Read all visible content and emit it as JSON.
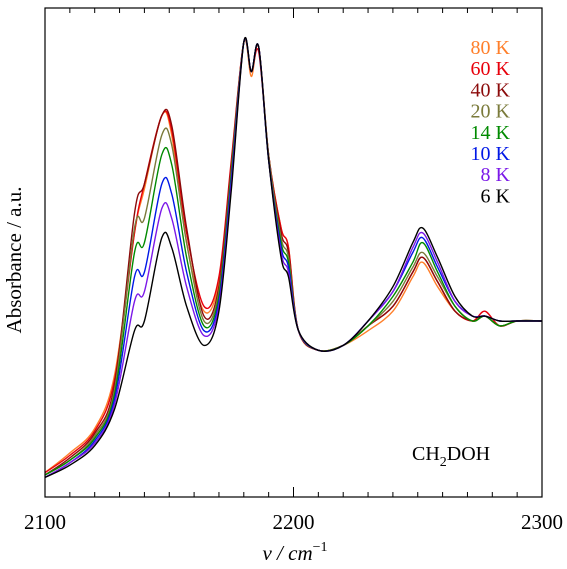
{
  "chart_data": {
    "type": "line",
    "xlabel": "ν / cm",
    "xlabel_superscript": "−1",
    "ylabel": "Absorbance / a.u.",
    "xlim": [
      2100,
      2300
    ],
    "ylim": [
      0,
      1
    ],
    "x_ticks": [
      2100,
      2200,
      2300
    ],
    "x_minor_step": 10,
    "grid": false,
    "legend_position": "top-right",
    "annotation": {
      "main": "CH",
      "sub": "2",
      "rest": "DOH"
    },
    "series": [
      {
        "name": "80 K",
        "color": "#ff7f2a",
        "values": [
          [
            2100,
            0.05
          ],
          [
            2110,
            0.09
          ],
          [
            2120,
            0.14
          ],
          [
            2128,
            0.25
          ],
          [
            2136,
            0.54
          ],
          [
            2140,
            0.63
          ],
          [
            2147,
            0.78
          ],
          [
            2151,
            0.74
          ],
          [
            2157,
            0.52
          ],
          [
            2164,
            0.38
          ],
          [
            2170,
            0.44
          ],
          [
            2175,
            0.68
          ],
          [
            2180,
            0.93
          ],
          [
            2183,
            0.86
          ],
          [
            2186,
            0.92
          ],
          [
            2190,
            0.7
          ],
          [
            2195,
            0.55
          ],
          [
            2198,
            0.51
          ],
          [
            2202,
            0.34
          ],
          [
            2210,
            0.3
          ],
          [
            2220,
            0.31
          ],
          [
            2230,
            0.34
          ],
          [
            2240,
            0.38
          ],
          [
            2248,
            0.45
          ],
          [
            2252,
            0.48
          ],
          [
            2258,
            0.43
          ],
          [
            2265,
            0.38
          ],
          [
            2272,
            0.36
          ],
          [
            2277,
            0.37
          ],
          [
            2283,
            0.35
          ],
          [
            2290,
            0.36
          ],
          [
            2300,
            0.36
          ]
        ]
      },
      {
        "name": "60 K",
        "color": "#e8000b",
        "values": [
          [
            2100,
            0.05
          ],
          [
            2110,
            0.085
          ],
          [
            2120,
            0.135
          ],
          [
            2128,
            0.24
          ],
          [
            2136,
            0.54
          ],
          [
            2140,
            0.64
          ],
          [
            2147,
            0.78
          ],
          [
            2151,
            0.75
          ],
          [
            2157,
            0.54
          ],
          [
            2164,
            0.39
          ],
          [
            2170,
            0.45
          ],
          [
            2175,
            0.69
          ],
          [
            2180,
            0.93
          ],
          [
            2183,
            0.87
          ],
          [
            2186,
            0.91
          ],
          [
            2190,
            0.7
          ],
          [
            2195,
            0.55
          ],
          [
            2198,
            0.51
          ],
          [
            2202,
            0.34
          ],
          [
            2210,
            0.3
          ],
          [
            2220,
            0.31
          ],
          [
            2230,
            0.35
          ],
          [
            2240,
            0.39
          ],
          [
            2248,
            0.46
          ],
          [
            2252,
            0.49
          ],
          [
            2258,
            0.44
          ],
          [
            2265,
            0.38
          ],
          [
            2272,
            0.36
          ],
          [
            2277,
            0.38
          ],
          [
            2283,
            0.35
          ],
          [
            2290,
            0.36
          ],
          [
            2300,
            0.36
          ]
        ]
      },
      {
        "name": "40 K",
        "color": "#8b0a0a",
        "values": [
          [
            2100,
            0.045
          ],
          [
            2110,
            0.08
          ],
          [
            2120,
            0.13
          ],
          [
            2128,
            0.23
          ],
          [
            2136,
            0.58
          ],
          [
            2140,
            0.64
          ],
          [
            2147,
            0.78
          ],
          [
            2151,
            0.76
          ],
          [
            2157,
            0.55
          ],
          [
            2164,
            0.37
          ],
          [
            2170,
            0.43
          ],
          [
            2175,
            0.68
          ],
          [
            2180,
            0.93
          ],
          [
            2183,
            0.87
          ],
          [
            2186,
            0.92
          ],
          [
            2190,
            0.7
          ],
          [
            2195,
            0.54
          ],
          [
            2198,
            0.5
          ],
          [
            2202,
            0.34
          ],
          [
            2210,
            0.3
          ],
          [
            2220,
            0.31
          ],
          [
            2230,
            0.35
          ],
          [
            2240,
            0.39
          ],
          [
            2248,
            0.46
          ],
          [
            2252,
            0.49
          ],
          [
            2258,
            0.44
          ],
          [
            2265,
            0.38
          ],
          [
            2272,
            0.36
          ],
          [
            2277,
            0.37
          ],
          [
            2283,
            0.35
          ],
          [
            2290,
            0.36
          ],
          [
            2300,
            0.36
          ]
        ]
      },
      {
        "name": "20 K",
        "color": "#7a7a3a",
        "values": [
          [
            2100,
            0.045
          ],
          [
            2110,
            0.075
          ],
          [
            2120,
            0.125
          ],
          [
            2128,
            0.22
          ],
          [
            2136,
            0.55
          ],
          [
            2140,
            0.57
          ],
          [
            2147,
            0.74
          ],
          [
            2151,
            0.72
          ],
          [
            2157,
            0.52
          ],
          [
            2164,
            0.36
          ],
          [
            2170,
            0.42
          ],
          [
            2175,
            0.67
          ],
          [
            2180,
            0.93
          ],
          [
            2183,
            0.87
          ],
          [
            2186,
            0.92
          ],
          [
            2190,
            0.7
          ],
          [
            2195,
            0.53
          ],
          [
            2198,
            0.49
          ],
          [
            2202,
            0.34
          ],
          [
            2210,
            0.3
          ],
          [
            2220,
            0.31
          ],
          [
            2230,
            0.35
          ],
          [
            2240,
            0.4
          ],
          [
            2248,
            0.47
          ],
          [
            2252,
            0.5
          ],
          [
            2258,
            0.45
          ],
          [
            2265,
            0.39
          ],
          [
            2272,
            0.36
          ],
          [
            2277,
            0.37
          ],
          [
            2283,
            0.35
          ],
          [
            2290,
            0.36
          ],
          [
            2300,
            0.36
          ]
        ]
      },
      {
        "name": "14 K",
        "color": "#008a00",
        "values": [
          [
            2100,
            0.045
          ],
          [
            2110,
            0.075
          ],
          [
            2120,
            0.12
          ],
          [
            2128,
            0.21
          ],
          [
            2136,
            0.5
          ],
          [
            2140,
            0.52
          ],
          [
            2147,
            0.7
          ],
          [
            2151,
            0.68
          ],
          [
            2157,
            0.49
          ],
          [
            2164,
            0.35
          ],
          [
            2170,
            0.41
          ],
          [
            2175,
            0.66
          ],
          [
            2180,
            0.93
          ],
          [
            2183,
            0.87
          ],
          [
            2186,
            0.92
          ],
          [
            2190,
            0.69
          ],
          [
            2195,
            0.52
          ],
          [
            2198,
            0.48
          ],
          [
            2202,
            0.34
          ],
          [
            2210,
            0.3
          ],
          [
            2220,
            0.31
          ],
          [
            2230,
            0.35
          ],
          [
            2240,
            0.41
          ],
          [
            2248,
            0.48
          ],
          [
            2252,
            0.52
          ],
          [
            2258,
            0.46
          ],
          [
            2265,
            0.39
          ],
          [
            2272,
            0.36
          ],
          [
            2277,
            0.37
          ],
          [
            2283,
            0.35
          ],
          [
            2290,
            0.36
          ],
          [
            2300,
            0.36
          ]
        ]
      },
      {
        "name": "10 K",
        "color": "#0018e6",
        "values": [
          [
            2100,
            0.04
          ],
          [
            2110,
            0.07
          ],
          [
            2120,
            0.115
          ],
          [
            2128,
            0.2
          ],
          [
            2136,
            0.45
          ],
          [
            2140,
            0.46
          ],
          [
            2147,
            0.64
          ],
          [
            2151,
            0.62
          ],
          [
            2157,
            0.46
          ],
          [
            2164,
            0.34
          ],
          [
            2170,
            0.4
          ],
          [
            2175,
            0.65
          ],
          [
            2180,
            0.93
          ],
          [
            2183,
            0.87
          ],
          [
            2186,
            0.92
          ],
          [
            2190,
            0.69
          ],
          [
            2195,
            0.51
          ],
          [
            2198,
            0.47
          ],
          [
            2202,
            0.34
          ],
          [
            2210,
            0.3
          ],
          [
            2220,
            0.31
          ],
          [
            2230,
            0.36
          ],
          [
            2240,
            0.42
          ],
          [
            2248,
            0.5
          ],
          [
            2252,
            0.53
          ],
          [
            2258,
            0.47
          ],
          [
            2265,
            0.4
          ],
          [
            2272,
            0.37
          ],
          [
            2277,
            0.37
          ],
          [
            2283,
            0.36
          ],
          [
            2290,
            0.36
          ],
          [
            2300,
            0.36
          ]
        ]
      },
      {
        "name": "8 K",
        "color": "#7b18e8",
        "values": [
          [
            2100,
            0.04
          ],
          [
            2110,
            0.07
          ],
          [
            2120,
            0.11
          ],
          [
            2128,
            0.19
          ],
          [
            2136,
            0.4
          ],
          [
            2140,
            0.42
          ],
          [
            2147,
            0.59
          ],
          [
            2151,
            0.57
          ],
          [
            2157,
            0.43
          ],
          [
            2164,
            0.33
          ],
          [
            2170,
            0.39
          ],
          [
            2175,
            0.64
          ],
          [
            2180,
            0.93
          ],
          [
            2183,
            0.87
          ],
          [
            2186,
            0.92
          ],
          [
            2190,
            0.69
          ],
          [
            2195,
            0.5
          ],
          [
            2198,
            0.46
          ],
          [
            2202,
            0.34
          ],
          [
            2210,
            0.3
          ],
          [
            2220,
            0.31
          ],
          [
            2230,
            0.36
          ],
          [
            2240,
            0.42
          ],
          [
            2248,
            0.51
          ],
          [
            2252,
            0.54
          ],
          [
            2258,
            0.48
          ],
          [
            2265,
            0.4
          ],
          [
            2272,
            0.37
          ],
          [
            2277,
            0.37
          ],
          [
            2283,
            0.36
          ],
          [
            2290,
            0.36
          ],
          [
            2300,
            0.36
          ]
        ]
      },
      {
        "name": "6 K",
        "color": "#000000",
        "values": [
          [
            2100,
            0.04
          ],
          [
            2110,
            0.065
          ],
          [
            2120,
            0.105
          ],
          [
            2128,
            0.18
          ],
          [
            2136,
            0.34
          ],
          [
            2140,
            0.36
          ],
          [
            2147,
            0.53
          ],
          [
            2151,
            0.51
          ],
          [
            2157,
            0.39
          ],
          [
            2164,
            0.31
          ],
          [
            2170,
            0.38
          ],
          [
            2175,
            0.63
          ],
          [
            2180,
            0.93
          ],
          [
            2183,
            0.87
          ],
          [
            2186,
            0.92
          ],
          [
            2190,
            0.69
          ],
          [
            2195,
            0.49
          ],
          [
            2198,
            0.45
          ],
          [
            2202,
            0.34
          ],
          [
            2210,
            0.3
          ],
          [
            2220,
            0.31
          ],
          [
            2230,
            0.36
          ],
          [
            2240,
            0.43
          ],
          [
            2248,
            0.52
          ],
          [
            2252,
            0.55
          ],
          [
            2258,
            0.49
          ],
          [
            2265,
            0.41
          ],
          [
            2272,
            0.37
          ],
          [
            2277,
            0.37
          ],
          [
            2283,
            0.36
          ],
          [
            2290,
            0.36
          ],
          [
            2300,
            0.36
          ]
        ]
      }
    ]
  }
}
